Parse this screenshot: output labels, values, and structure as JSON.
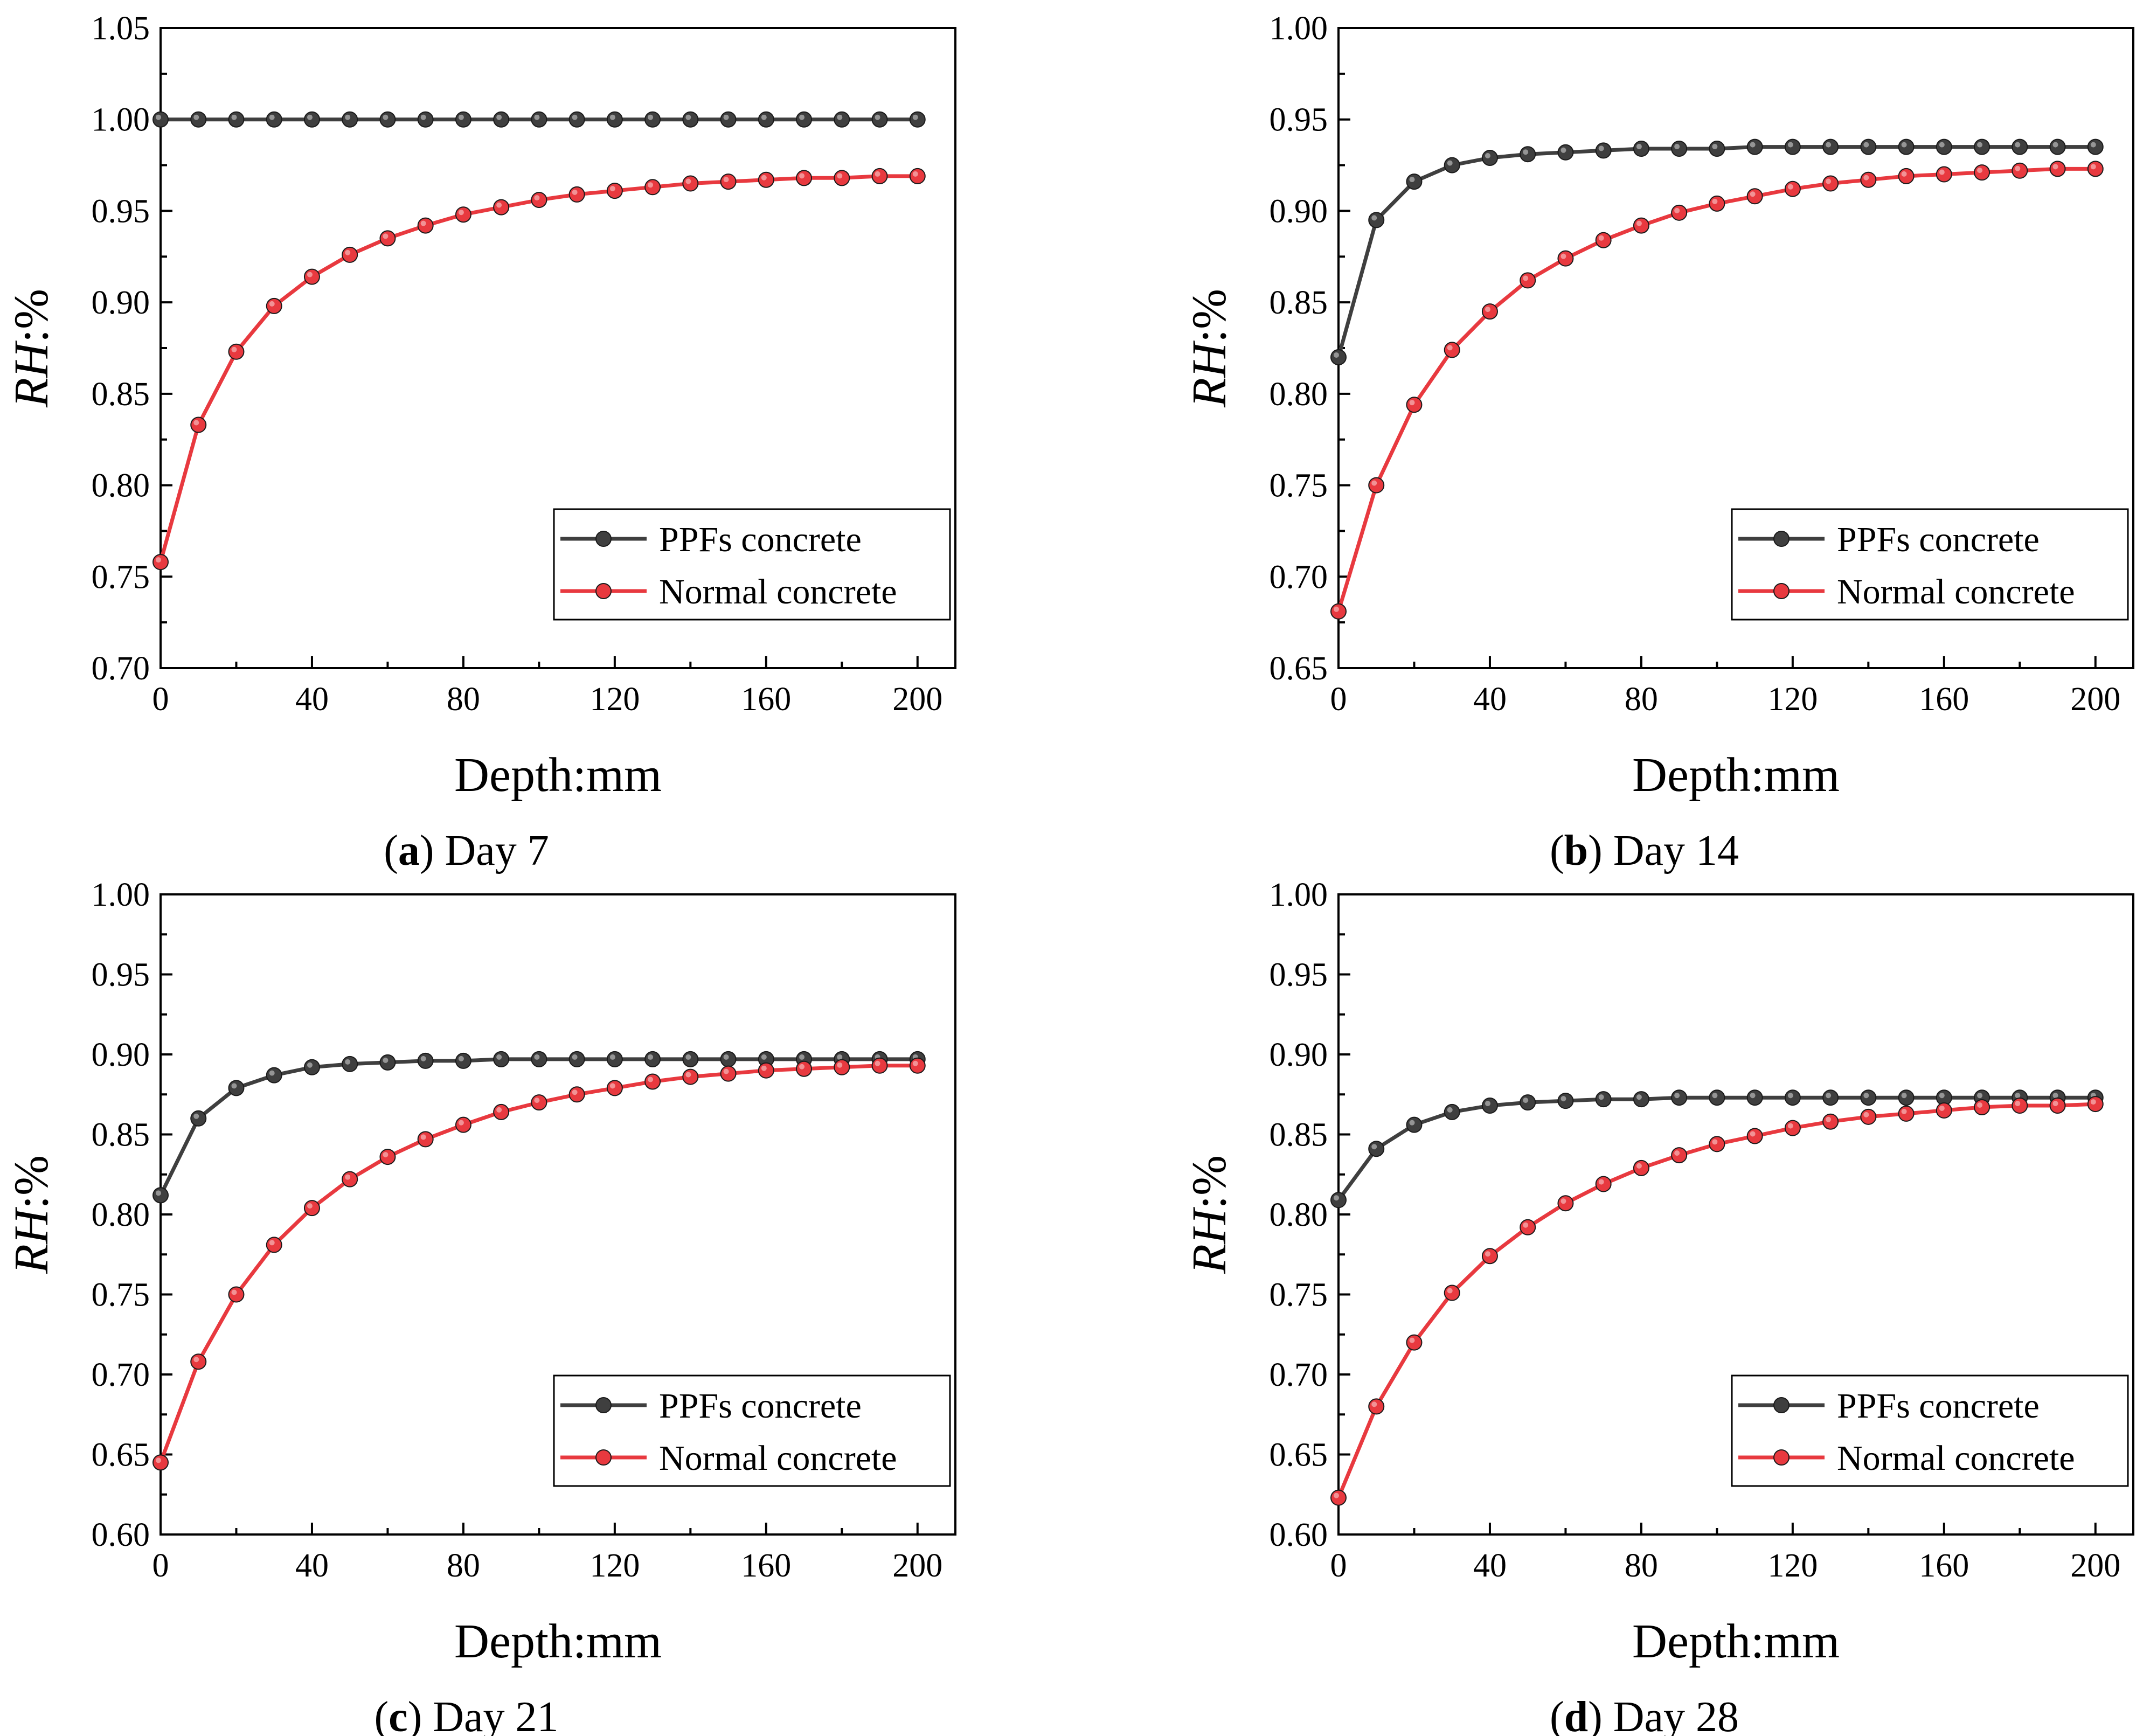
{
  "colors": {
    "ppfs": "#3f3f3f",
    "normal": "#e8393f",
    "frame": "#000000",
    "background": "#ffffff"
  },
  "chart_data": [
    {
      "type": "line",
      "panel_letter": "a",
      "caption_rest": "Day 7",
      "xlabel": "Depth:mm",
      "ylabel_italic": "RH",
      "ylabel_rest": ":%",
      "xlim": [
        0,
        210
      ],
      "ylim": [
        0.7,
        1.05
      ],
      "xticks": [
        0,
        40,
        80,
        120,
        160,
        200
      ],
      "xtick_labels": [
        "0",
        "40",
        "80",
        "120",
        "160",
        "200"
      ],
      "yticks": [
        0.7,
        0.75,
        0.8,
        0.85,
        0.9,
        0.95,
        1.0,
        1.05
      ],
      "ytick_labels": [
        "0.70",
        "0.75",
        "0.80",
        "0.85",
        "0.90",
        "0.95",
        "1.00",
        "1.05"
      ],
      "legend_position": "bottom-right",
      "x": [
        0,
        10,
        20,
        30,
        40,
        50,
        60,
        70,
        80,
        90,
        100,
        110,
        120,
        130,
        140,
        150,
        160,
        170,
        180,
        190,
        200
      ],
      "series": [
        {
          "name": "PPFs concrete",
          "color_key": "ppfs",
          "values": [
            1.0,
            1.0,
            1.0,
            1.0,
            1.0,
            1.0,
            1.0,
            1.0,
            1.0,
            1.0,
            1.0,
            1.0,
            1.0,
            1.0,
            1.0,
            1.0,
            1.0,
            1.0,
            1.0,
            1.0,
            1.0
          ]
        },
        {
          "name": "Normal concrete",
          "color_key": "normal",
          "values": [
            0.758,
            0.833,
            0.873,
            0.898,
            0.914,
            0.926,
            0.935,
            0.942,
            0.948,
            0.952,
            0.956,
            0.959,
            0.961,
            0.963,
            0.965,
            0.966,
            0.967,
            0.968,
            0.968,
            0.969,
            0.969
          ]
        }
      ]
    },
    {
      "type": "line",
      "panel_letter": "b",
      "caption_rest": "Day 14",
      "xlabel": "Depth:mm",
      "ylabel_italic": "RH",
      "ylabel_rest": ":%",
      "xlim": [
        0,
        210
      ],
      "ylim": [
        0.65,
        1.0
      ],
      "xticks": [
        0,
        40,
        80,
        120,
        160,
        200
      ],
      "xtick_labels": [
        "0",
        "40",
        "80",
        "120",
        "160",
        "200"
      ],
      "yticks": [
        0.65,
        0.7,
        0.75,
        0.8,
        0.85,
        0.9,
        0.95,
        1.0
      ],
      "ytick_labels": [
        "0.65",
        "0.70",
        "0.75",
        "0.80",
        "0.85",
        "0.90",
        "0.95",
        "1.00"
      ],
      "legend_position": "bottom-right",
      "x": [
        0,
        10,
        20,
        30,
        40,
        50,
        60,
        70,
        80,
        90,
        100,
        110,
        120,
        130,
        140,
        150,
        160,
        170,
        180,
        190,
        200
      ],
      "series": [
        {
          "name": "PPFs concrete",
          "color_key": "ppfs",
          "values": [
            0.82,
            0.895,
            0.916,
            0.925,
            0.929,
            0.931,
            0.932,
            0.933,
            0.934,
            0.934,
            0.934,
            0.935,
            0.935,
            0.935,
            0.935,
            0.935,
            0.935,
            0.935,
            0.935,
            0.935,
            0.935
          ]
        },
        {
          "name": "Normal concrete",
          "color_key": "normal",
          "values": [
            0.681,
            0.75,
            0.794,
            0.824,
            0.845,
            0.862,
            0.874,
            0.884,
            0.892,
            0.899,
            0.904,
            0.908,
            0.912,
            0.915,
            0.917,
            0.919,
            0.92,
            0.921,
            0.922,
            0.923,
            0.923
          ]
        }
      ]
    },
    {
      "type": "line",
      "panel_letter": "c",
      "caption_rest": "Day 21",
      "xlabel": "Depth:mm",
      "ylabel_italic": "RH",
      "ylabel_rest": ":%",
      "xlim": [
        0,
        210
      ],
      "ylim": [
        0.6,
        1.0
      ],
      "xticks": [
        0,
        40,
        80,
        120,
        160,
        200
      ],
      "xtick_labels": [
        "0",
        "40",
        "80",
        "120",
        "160",
        "200"
      ],
      "yticks": [
        0.6,
        0.65,
        0.7,
        0.75,
        0.8,
        0.85,
        0.9,
        0.95,
        1.0
      ],
      "ytick_labels": [
        "0.60",
        "0.65",
        "0.70",
        "0.75",
        "0.80",
        "0.85",
        "0.90",
        "0.95",
        "1.00"
      ],
      "legend_position": "bottom-right",
      "x": [
        0,
        10,
        20,
        30,
        40,
        50,
        60,
        70,
        80,
        90,
        100,
        110,
        120,
        130,
        140,
        150,
        160,
        170,
        180,
        190,
        200
      ],
      "series": [
        {
          "name": "PPFs concrete",
          "color_key": "ppfs",
          "values": [
            0.812,
            0.86,
            0.879,
            0.887,
            0.892,
            0.894,
            0.895,
            0.896,
            0.896,
            0.897,
            0.897,
            0.897,
            0.897,
            0.897,
            0.897,
            0.897,
            0.897,
            0.897,
            0.897,
            0.897,
            0.897
          ]
        },
        {
          "name": "Normal concrete",
          "color_key": "normal",
          "values": [
            0.645,
            0.708,
            0.75,
            0.781,
            0.804,
            0.822,
            0.836,
            0.847,
            0.856,
            0.864,
            0.87,
            0.875,
            0.879,
            0.883,
            0.886,
            0.888,
            0.89,
            0.891,
            0.892,
            0.893,
            0.893
          ]
        }
      ]
    },
    {
      "type": "line",
      "panel_letter": "d",
      "caption_rest": "Day 28",
      "xlabel": "Depth:mm",
      "ylabel_italic": "RH",
      "ylabel_rest": ":%",
      "xlim": [
        0,
        210
      ],
      "ylim": [
        0.6,
        1.0
      ],
      "xticks": [
        0,
        40,
        80,
        120,
        160,
        200
      ],
      "xtick_labels": [
        "0",
        "40",
        "80",
        "120",
        "160",
        "200"
      ],
      "yticks": [
        0.6,
        0.65,
        0.7,
        0.75,
        0.8,
        0.85,
        0.9,
        0.95,
        1.0
      ],
      "ytick_labels": [
        "0.60",
        "0.65",
        "0.70",
        "0.75",
        "0.80",
        "0.85",
        "0.90",
        "0.95",
        "1.00"
      ],
      "legend_position": "bottom-right",
      "x": [
        0,
        10,
        20,
        30,
        40,
        50,
        60,
        70,
        80,
        90,
        100,
        110,
        120,
        130,
        140,
        150,
        160,
        170,
        180,
        190,
        200
      ],
      "series": [
        {
          "name": "PPFs concrete",
          "color_key": "ppfs",
          "values": [
            0.809,
            0.841,
            0.856,
            0.864,
            0.868,
            0.87,
            0.871,
            0.872,
            0.872,
            0.873,
            0.873,
            0.873,
            0.873,
            0.873,
            0.873,
            0.873,
            0.873,
            0.873,
            0.873,
            0.873,
            0.873
          ]
        },
        {
          "name": "Normal concrete",
          "color_key": "normal",
          "values": [
            0.623,
            0.68,
            0.72,
            0.751,
            0.774,
            0.792,
            0.807,
            0.819,
            0.829,
            0.837,
            0.844,
            0.849,
            0.854,
            0.858,
            0.861,
            0.863,
            0.865,
            0.867,
            0.868,
            0.868,
            0.869
          ]
        }
      ]
    }
  ]
}
